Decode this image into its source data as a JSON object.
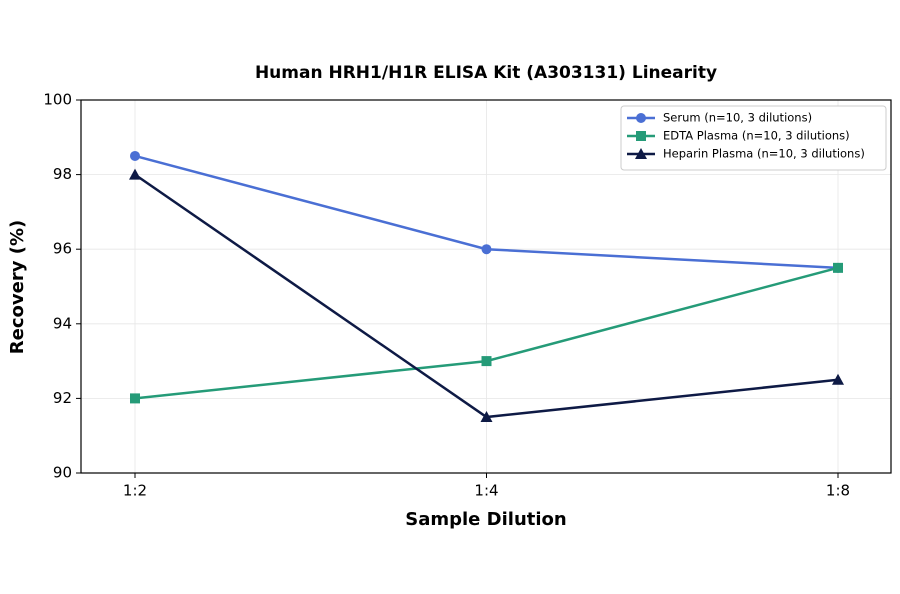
{
  "chart_data": {
    "type": "line",
    "title": "Human HRH1/H1R ELISA Kit (A303131) Linearity",
    "x_label": "Sample Dilution",
    "y_label": "Recovery (%)",
    "categories": [
      "1:2",
      "1:4",
      "1:8"
    ],
    "series": [
      {
        "name": "Serum (n=10, 3 dilutions)",
        "color": "#4a6fd4",
        "marker": "circle",
        "values": [
          98.5,
          96,
          95.5
        ]
      },
      {
        "name": "EDTA Plasma (n=10, 3 dilutions)",
        "color": "#259b78",
        "marker": "square",
        "values": [
          92,
          93,
          95.5
        ]
      },
      {
        "name": "Heparin Plasma (n=10, 3 dilutions)",
        "color": "#0e1a45",
        "marker": "triangle",
        "values": [
          98,
          91.5,
          92.5
        ]
      }
    ],
    "ylim": [
      90,
      100
    ],
    "yticks": [
      90,
      92,
      94,
      96,
      98,
      100
    ],
    "grid": true,
    "legend": "upper right"
  }
}
